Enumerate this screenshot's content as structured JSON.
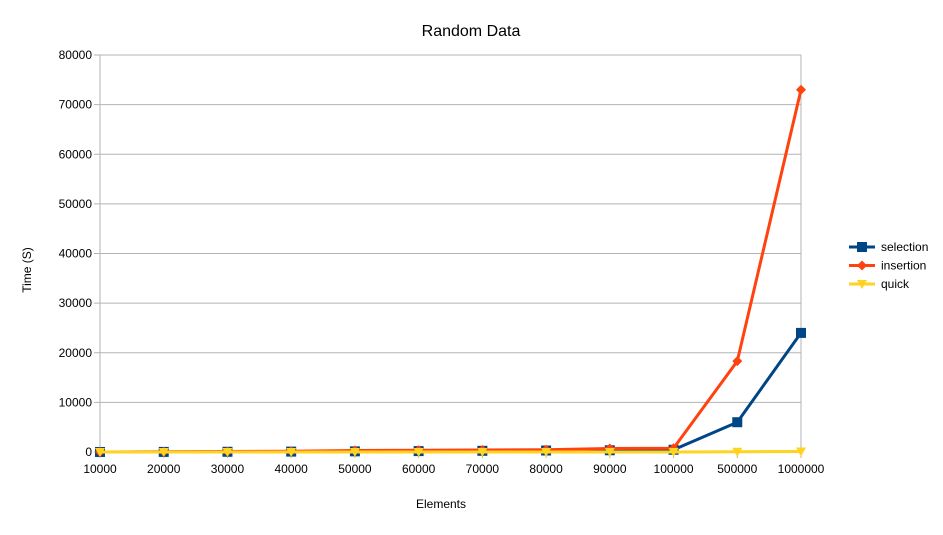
{
  "chart_data": {
    "type": "line",
    "title": "Random Data",
    "xlabel": "Elements",
    "ylabel": "Time (S)",
    "categories": [
      "10000",
      "20000",
      "30000",
      "40000",
      "50000",
      "60000",
      "70000",
      "80000",
      "90000",
      "100000",
      "500000",
      "1000000"
    ],
    "yticks": [
      "0",
      "10000",
      "20000",
      "30000",
      "40000",
      "50000",
      "60000",
      "70000",
      "80000"
    ],
    "ylim": [
      0,
      80000
    ],
    "grid": true,
    "legend_position": "right",
    "series": [
      {
        "name": "selection",
        "color": "#004586",
        "marker": "square",
        "values": [
          5,
          20,
          45,
          80,
          130,
          180,
          240,
          300,
          350,
          450,
          6000,
          24000
        ]
      },
      {
        "name": "insertion",
        "color": "#ff420e",
        "marker": "diamond",
        "values": [
          10,
          40,
          90,
          150,
          300,
          350,
          400,
          450,
          700,
          750,
          18300,
          73000
        ]
      },
      {
        "name": "quick",
        "color": "#ffd320",
        "marker": "triangle-down",
        "values": [
          1,
          2,
          3,
          4,
          5,
          6,
          7,
          8,
          9,
          10,
          50,
          100
        ]
      }
    ]
  }
}
